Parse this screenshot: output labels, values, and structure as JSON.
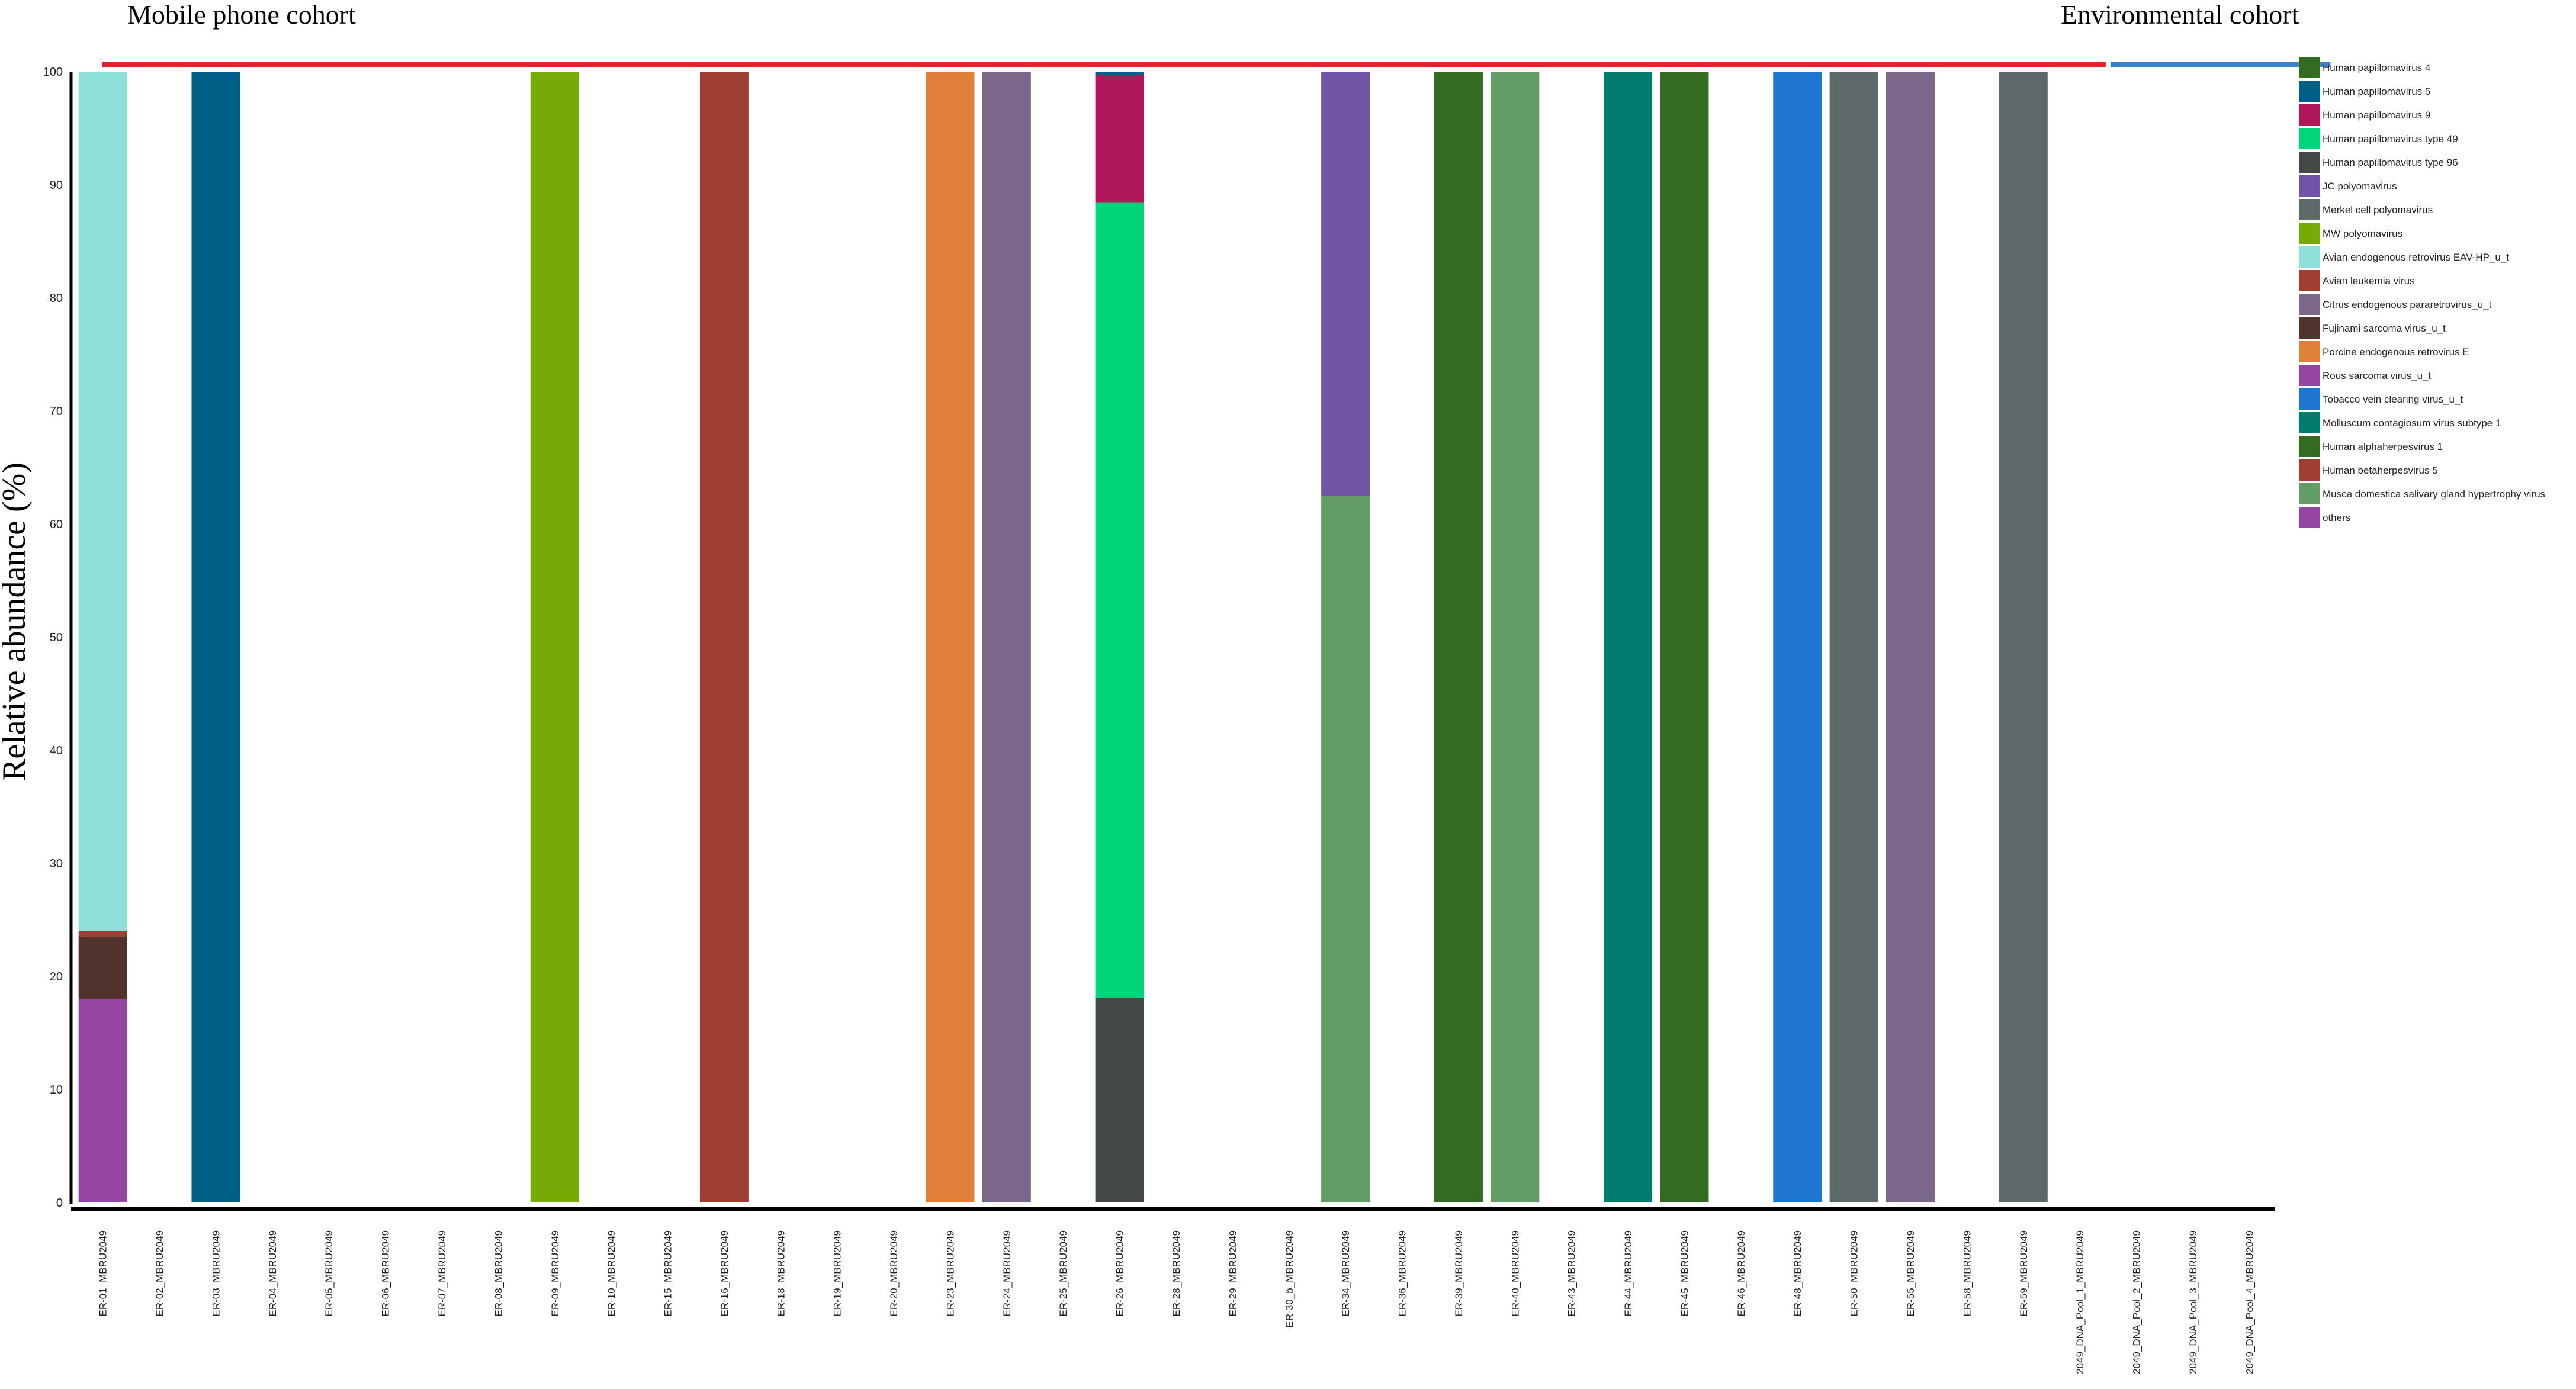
{
  "chart_data": {
    "type": "bar",
    "stacked": true,
    "title": "",
    "xlabel": "",
    "ylabel": "Relative abundance (%)",
    "ylim": [
      0,
      100
    ],
    "yticks": [
      0,
      10,
      20,
      30,
      40,
      50,
      60,
      70,
      80,
      90,
      100
    ],
    "grid": false,
    "legend_position": "right",
    "groups": [
      {
        "name": "Mobile phone cohort",
        "color": "#e8202e",
        "first": 0,
        "last": 35
      },
      {
        "name": "Environmental cohort",
        "color": "#3b82c4",
        "first": 36,
        "last": 39
      }
    ],
    "categories": [
      "ER-01_MBRU2049",
      "ER-02_MBRU2049",
      "ER-03_MBRU2049",
      "ER-04_MBRU2049",
      "ER-05_MBRU2049",
      "ER-06_MBRU2049",
      "ER-07_MBRU2049",
      "ER-08_MBRU2049",
      "ER-09_MBRU2049",
      "ER-10_MBRU2049",
      "ER-15_MBRU2049",
      "ER-16_MBRU2049",
      "ER-18_MBRU2049",
      "ER-19_MBRU2049",
      "ER-20_MBRU2049",
      "ER-23_MBRU2049",
      "ER-24_MBRU2049",
      "ER-25_MBRU2049",
      "ER-26_MBRU2049",
      "ER-28_MBRU2049",
      "ER-29_MBRU2049",
      "ER-30_b_MBRU2049",
      "ER-34_MBRU2049",
      "ER-36_MBRU2049",
      "ER-39_MBRU2049",
      "ER-40_MBRU2049",
      "ER-43_MBRU2049",
      "ER-44_MBRU2049",
      "ER-45_MBRU2049",
      "ER-46_MBRU2049",
      "ER-48_MBRU2049",
      "ER-50_MBRU2049",
      "ER-55_MBRU2049",
      "ER-58_MBRU2049",
      "ER-59_MBRU2049",
      "2049_DNA_Pool_1_MBRU2049",
      "2049_DNA_Pool_2_MBRU2049",
      "2049_DNA_Pool_3_MBRU2049",
      "2049_DNA_Pool_4_MBRU2049"
    ],
    "species": [
      {
        "name": "Human papillomavirus 4",
        "color": "#336b21"
      },
      {
        "name": "Human papillomavirus 5",
        "color": "#005f87"
      },
      {
        "name": "Human papillomavirus 9",
        "color": "#b0175a"
      },
      {
        "name": "Human papillomavirus type 49",
        "color": "#00d47a"
      },
      {
        "name": "Human papillomavirus type 96",
        "color": "#434a45"
      },
      {
        "name": "JC polyomavirus",
        "color": "#7155a7"
      },
      {
        "name": "Merkel cell polyomavirus",
        "color": "#5d686a"
      },
      {
        "name": "MW polyomavirus",
        "color": "#76aa07"
      },
      {
        "name": "Avian endogenous retrovirus EAV-HP_u_t",
        "color": "#8fe0d8"
      },
      {
        "name": "Avian leukemia virus",
        "color": "#9e3f31"
      },
      {
        "name": "Citrus endogenous pararetrovirus_u_t",
        "color": "#7b6888"
      },
      {
        "name": "Fujinami sarcoma virus_u_t",
        "color": "#51322d"
      },
      {
        "name": "Porcine endogenous retrovirus E",
        "color": "#e0803a"
      },
      {
        "name": "Rous sarcoma virus_u_t",
        "color": "#9446a3"
      },
      {
        "name": "Tobacco vein clearing virus_u_t",
        "color": "#1f76d2"
      },
      {
        "name": "Molluscum contagiosum virus subtype 1",
        "color": "#017b6b"
      },
      {
        "name": "Human alphaherpesvirus 1",
        "color": "#336b21"
      },
      {
        "name": "Human betaherpesvirus 5",
        "color": "#9e3f31"
      },
      {
        "name": "Musca domestica salivary gland hypertrophy virus",
        "color": "#649c67"
      },
      {
        "name": "others",
        "color": "#9446a3"
      }
    ],
    "series": [
      {
        "name": "Human papillomavirus 4",
        "values": [
          0,
          0,
          0,
          0,
          0,
          0,
          0,
          0,
          0,
          0,
          0,
          0,
          0,
          0,
          0,
          0,
          0,
          0,
          0,
          0,
          0,
          0,
          0,
          0,
          100,
          0,
          0,
          0,
          100,
          0,
          0,
          0,
          0,
          0,
          0,
          0,
          0,
          0,
          0
        ]
      },
      {
        "name": "Human papillomavirus 5",
        "values": [
          0,
          0,
          100,
          0,
          0,
          0,
          0,
          0,
          0,
          0,
          0,
          0,
          0,
          0,
          0,
          0,
          0,
          0,
          0.3,
          0,
          0,
          0,
          0,
          0,
          0,
          0,
          0,
          0,
          0,
          0,
          0,
          0,
          0,
          0,
          0,
          0,
          0,
          0,
          0
        ]
      },
      {
        "name": "Human papillomavirus 9",
        "values": [
          0,
          0,
          0,
          0,
          0,
          0,
          0,
          0,
          0,
          0,
          0,
          0,
          0,
          0,
          0,
          0,
          0,
          0,
          11.3,
          0,
          0,
          0,
          0,
          0,
          0,
          0,
          0,
          0,
          0,
          0,
          0,
          0,
          0,
          0,
          0,
          0,
          0,
          0,
          0
        ]
      },
      {
        "name": "Human papillomavirus type 49",
        "values": [
          0,
          0,
          0,
          0,
          0,
          0,
          0,
          0,
          0,
          0,
          0,
          0,
          0,
          0,
          0,
          0,
          0,
          0,
          70.3,
          0,
          0,
          0,
          0,
          0,
          0,
          0,
          0,
          0,
          0,
          0,
          0,
          0,
          0,
          0,
          0,
          0,
          0,
          0,
          0
        ]
      },
      {
        "name": "Human papillomavirus type 96",
        "values": [
          0,
          0,
          0,
          0,
          0,
          0,
          0,
          0,
          0,
          0,
          0,
          0,
          0,
          0,
          0,
          0,
          0,
          0,
          18.1,
          0,
          0,
          0,
          0,
          0,
          0,
          0,
          0,
          0,
          0,
          0,
          0,
          0,
          0,
          0,
          0,
          0,
          0,
          0,
          0
        ]
      },
      {
        "name": "JC polyomavirus",
        "values": [
          0,
          0,
          0,
          0,
          0,
          0,
          0,
          0,
          0,
          0,
          0,
          0,
          0,
          0,
          0,
          0,
          0,
          0,
          0,
          0,
          0,
          0,
          37.5,
          0,
          0,
          0,
          0,
          0,
          0,
          0,
          0,
          0,
          0,
          0,
          0,
          0,
          0,
          0,
          0
        ]
      },
      {
        "name": "Merkel cell polyomavirus",
        "values": [
          0,
          0,
          0,
          0,
          0,
          0,
          0,
          0,
          0,
          0,
          0,
          0,
          0,
          0,
          0,
          0,
          0,
          0,
          0,
          0,
          0,
          0,
          0,
          0,
          0,
          0,
          0,
          0,
          0,
          0,
          0,
          100,
          0,
          0,
          100,
          0,
          0,
          0,
          0
        ]
      },
      {
        "name": "MW polyomavirus",
        "values": [
          0,
          0,
          0,
          0,
          0,
          0,
          0,
          0,
          100,
          0,
          0,
          0,
          0,
          0,
          0,
          0,
          0,
          0,
          0,
          0,
          0,
          0,
          0,
          0,
          0,
          0,
          0,
          0,
          0,
          0,
          0,
          0,
          0,
          0,
          0,
          0,
          0,
          0,
          0
        ]
      },
      {
        "name": "Avian endogenous retrovirus EAV-HP_u_t",
        "values": [
          76,
          0,
          0,
          0,
          0,
          0,
          0,
          0,
          0,
          0,
          0,
          0,
          0,
          0,
          0,
          0,
          0,
          0,
          0,
          0,
          0,
          0,
          0,
          0,
          0,
          0,
          0,
          0,
          0,
          0,
          0,
          0,
          0,
          0,
          0,
          0,
          0,
          0,
          0
        ]
      },
      {
        "name": "Avian leukemia virus",
        "values": [
          0.5,
          0,
          0,
          0,
          0,
          0,
          0,
          0,
          0,
          0,
          0,
          100,
          0,
          0,
          0,
          0,
          0,
          0,
          0,
          0,
          0,
          0,
          0,
          0,
          0,
          0,
          0,
          0,
          0,
          0,
          0,
          0,
          0,
          0,
          0,
          0,
          0,
          0,
          0
        ]
      },
      {
        "name": "Citrus endogenous pararetrovirus_u_t",
        "values": [
          0,
          0,
          0,
          0,
          0,
          0,
          0,
          0,
          0,
          0,
          0,
          0,
          0,
          0,
          0,
          0,
          100,
          0,
          0,
          0,
          0,
          0,
          0,
          0,
          0,
          0,
          0,
          0,
          0,
          0,
          0,
          0,
          100,
          0,
          0,
          0,
          0,
          0,
          0
        ]
      },
      {
        "name": "Fujinami sarcoma virus_u_t",
        "values": [
          5.5,
          0,
          0,
          0,
          0,
          0,
          0,
          0,
          0,
          0,
          0,
          0,
          0,
          0,
          0,
          0,
          0,
          0,
          0,
          0,
          0,
          0,
          0,
          0,
          0,
          0,
          0,
          0,
          0,
          0,
          0,
          0,
          0,
          0,
          0,
          0,
          0,
          0,
          0
        ]
      },
      {
        "name": "Porcine endogenous retrovirus E",
        "values": [
          0,
          0,
          0,
          0,
          0,
          0,
          0,
          0,
          0,
          0,
          0,
          0,
          0,
          0,
          0,
          100,
          0,
          0,
          0,
          0,
          0,
          0,
          0,
          0,
          0,
          0,
          0,
          0,
          0,
          0,
          0,
          0,
          0,
          0,
          0,
          0,
          0,
          0,
          0
        ]
      },
      {
        "name": "Rous sarcoma virus_u_t",
        "values": [
          18,
          0,
          0,
          0,
          0,
          0,
          0,
          0,
          0,
          0,
          0,
          0,
          0,
          0,
          0,
          0,
          0,
          0,
          0,
          0,
          0,
          0,
          0,
          0,
          0,
          0,
          0,
          0,
          0,
          0,
          0,
          0,
          0,
          0,
          0,
          0,
          0,
          0,
          0
        ]
      },
      {
        "name": "Tobacco vein clearing virus_u_t",
        "values": [
          0,
          0,
          0,
          0,
          0,
          0,
          0,
          0,
          0,
          0,
          0,
          0,
          0,
          0,
          0,
          0,
          0,
          0,
          0,
          0,
          0,
          0,
          0,
          0,
          0,
          0,
          0,
          0,
          0,
          0,
          100,
          0,
          0,
          0,
          0,
          0,
          0,
          0,
          0
        ]
      },
      {
        "name": "Molluscum contagiosum virus subtype 1",
        "values": [
          0,
          0,
          0,
          0,
          0,
          0,
          0,
          0,
          0,
          0,
          0,
          0,
          0,
          0,
          0,
          0,
          0,
          0,
          0,
          0,
          0,
          0,
          0,
          0,
          0,
          0,
          0,
          100,
          0,
          0,
          0,
          0,
          0,
          0,
          0,
          0,
          0,
          0,
          0
        ]
      },
      {
        "name": "Musca domestica salivary gland hypertrophy virus",
        "values": [
          0,
          0,
          0,
          0,
          0,
          0,
          0,
          0,
          0,
          0,
          0,
          0,
          0,
          0,
          0,
          0,
          0,
          0,
          0,
          0,
          0,
          0,
          62.5,
          0,
          0,
          100,
          0,
          0,
          0,
          0,
          0,
          0,
          0,
          0,
          0,
          0,
          0,
          0,
          0
        ]
      }
    ]
  }
}
